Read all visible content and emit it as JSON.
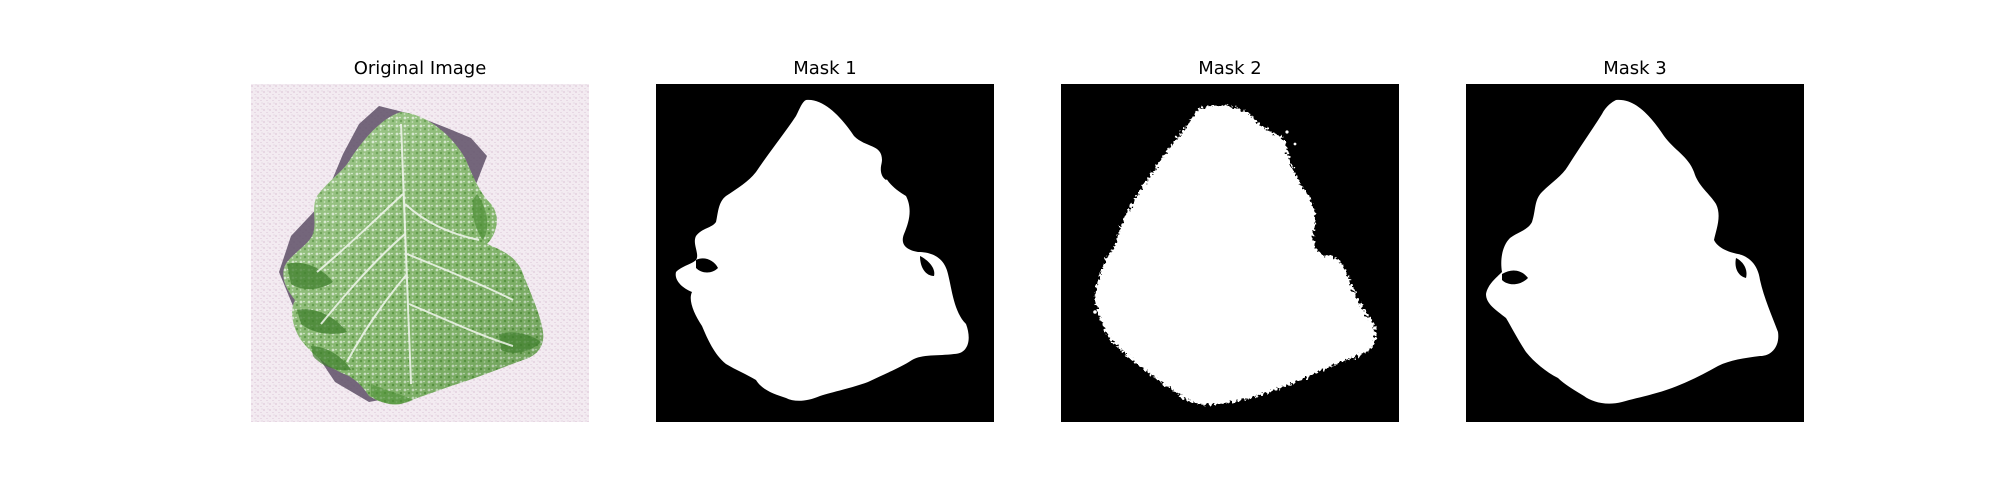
{
  "figure": {
    "panels": [
      {
        "title": "Original Image",
        "kind": "photo"
      },
      {
        "title": "Mask 1",
        "kind": "mask"
      },
      {
        "title": "Mask 2",
        "kind": "mask"
      },
      {
        "title": "Mask 3",
        "kind": "mask"
      }
    ]
  },
  "colors": {
    "mask_background": "#000000",
    "mask_foreground": "#ffffff",
    "photo_background": "#f1e8ee",
    "leaf_dark": "#3d7a2a",
    "leaf_mid": "#7fb068",
    "leaf_light": "#d6ead0",
    "shadow": "#5d4f66"
  }
}
